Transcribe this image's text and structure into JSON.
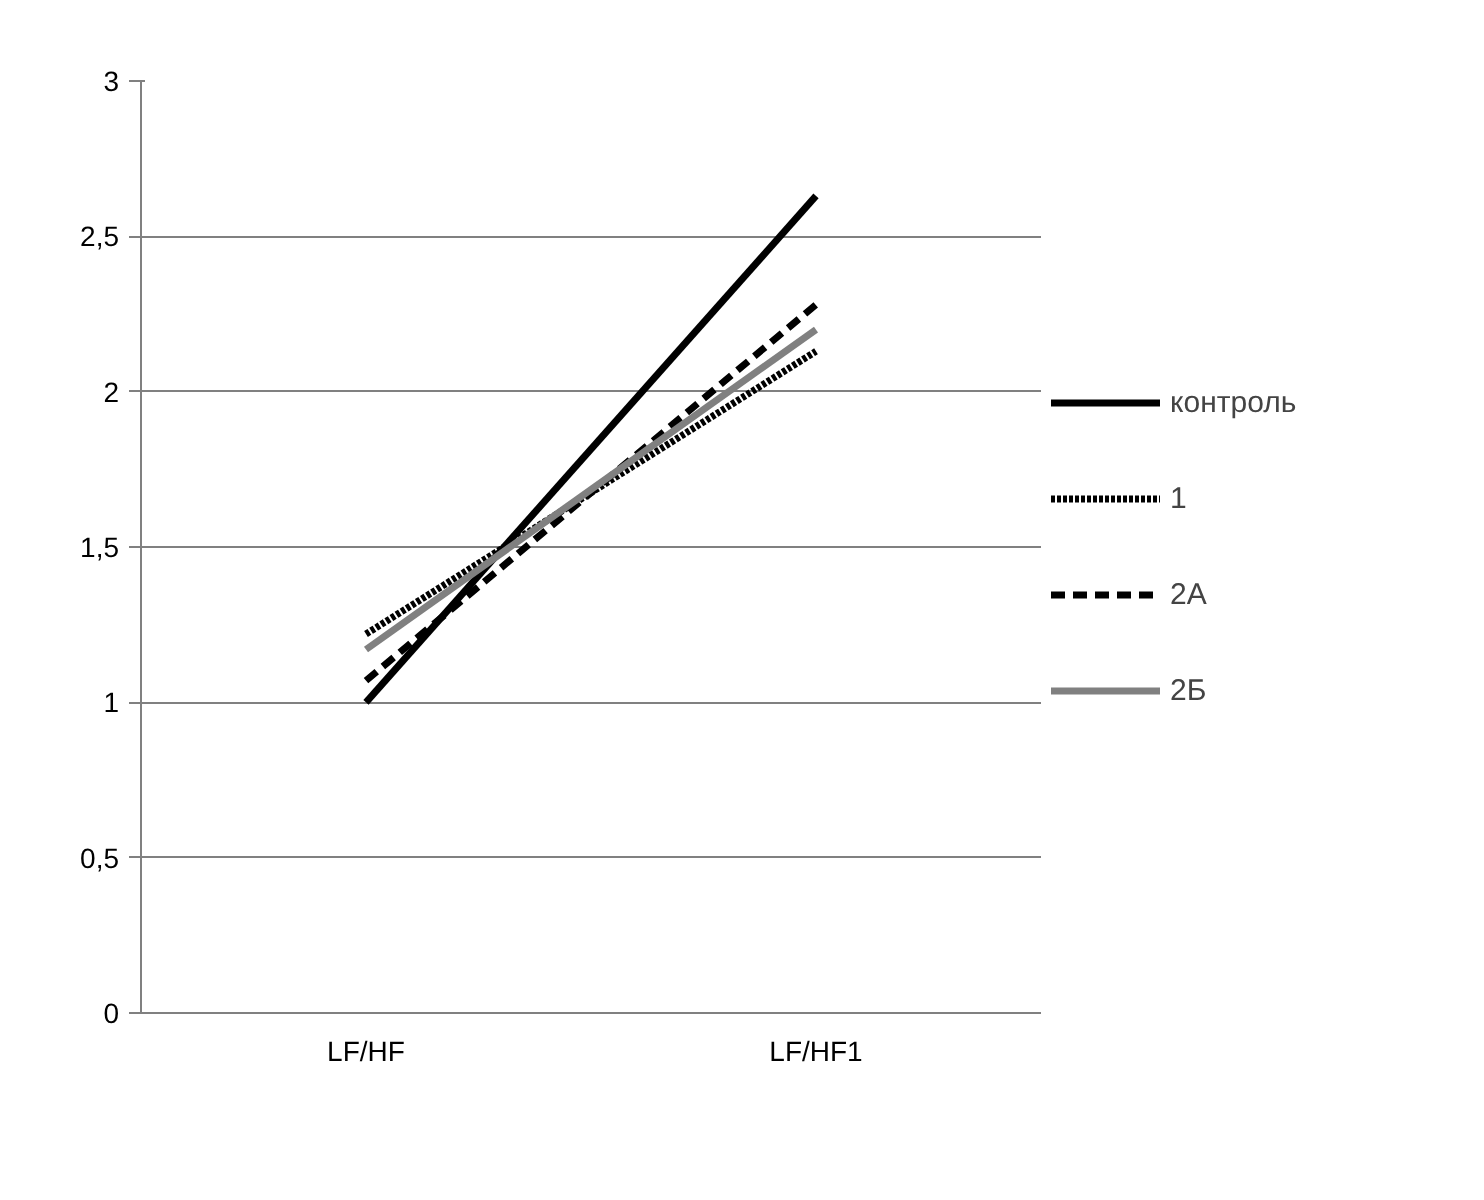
{
  "chart_data": {
    "type": "line",
    "categories": [
      "LF/HF",
      "LF/HF1"
    ],
    "series": [
      {
        "name": "контроль",
        "color": "#000000",
        "values": [
          1.0,
          2.63
        ],
        "line_style": "solid"
      },
      {
        "name": "1",
        "color": "#000000",
        "values": [
          1.22,
          2.13
        ],
        "line_style": "dotted"
      },
      {
        "name": "2А",
        "color": "#000000",
        "values": [
          1.07,
          2.28
        ],
        "line_style": "dashed"
      },
      {
        "name": "2Б",
        "color": "#808080",
        "values": [
          1.17,
          2.2
        ],
        "line_style": "solid"
      }
    ],
    "ylim": [
      0,
      3
    ],
    "yticks": [
      0,
      {
        "value": 0.5,
        "label": "0,5"
      },
      1,
      {
        "value": 1.5,
        "label": "1,5"
      },
      2,
      {
        "value": 2.5,
        "label": "2,5"
      },
      3
    ],
    "grid": "y",
    "legend": "right",
    "marker": "none"
  }
}
